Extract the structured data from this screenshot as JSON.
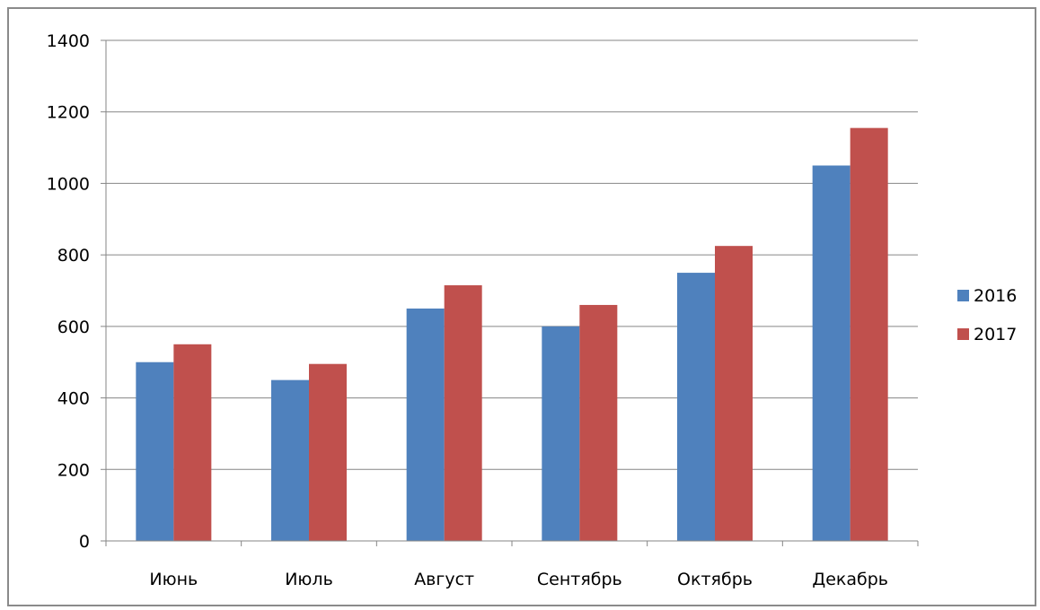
{
  "chart_data": {
    "type": "bar",
    "categories": [
      "Июнь",
      "Июль",
      "Август",
      "Сентябрь",
      "Октябрь",
      "Декабрь"
    ],
    "series": [
      {
        "name": "2016",
        "color": "#4F81BD",
        "values": [
          500,
          450,
          650,
          600,
          750,
          1050
        ]
      },
      {
        "name": "2017",
        "color": "#C0504D",
        "values": [
          550,
          495,
          715,
          660,
          825,
          1155
        ]
      }
    ],
    "title": "",
    "xlabel": "",
    "ylabel": "",
    "ylim": [
      0,
      1400
    ],
    "yticks": [
      "0",
      "200",
      "400",
      "600",
      "800",
      "1000",
      "1200",
      "1400"
    ],
    "grid": true,
    "legend_position": "right"
  }
}
